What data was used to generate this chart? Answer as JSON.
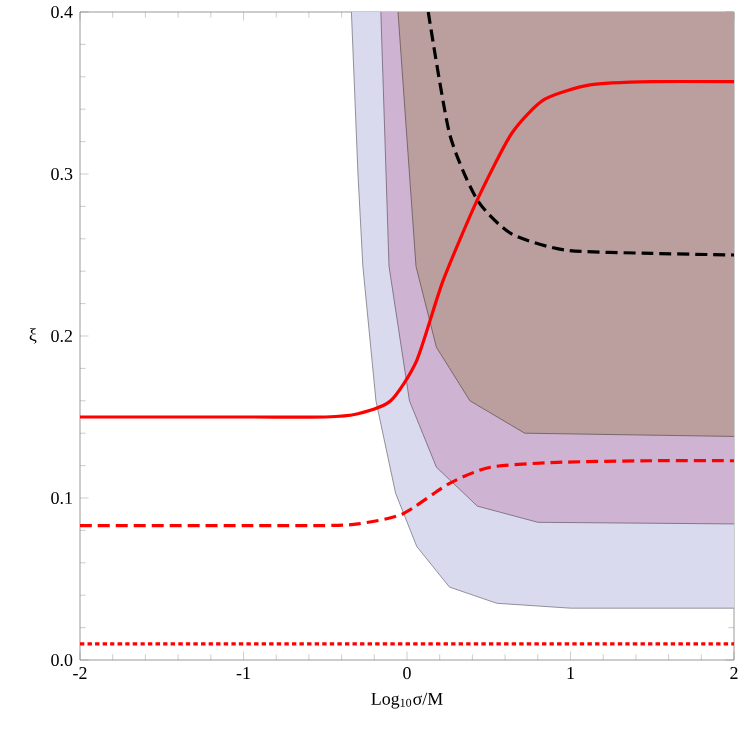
{
  "chart_data": {
    "type": "line",
    "xlabel": "Log$_{10}$σ/M",
    "ylabel": "ξ",
    "xlim": [
      -2,
      2
    ],
    "ylim": [
      0,
      0.4
    ],
    "xticks": [
      -2,
      -1,
      0,
      1,
      2
    ],
    "yticks": [
      {
        "value": 0,
        "label": "0.0"
      },
      {
        "value": 0.1,
        "label": "0.1"
      },
      {
        "value": 0.2,
        "label": "0.2"
      },
      {
        "value": 0.3,
        "label": "0.3"
      },
      {
        "value": 0.4,
        "label": "0.4"
      }
    ],
    "grid": false,
    "legend": false,
    "series": [
      {
        "type": "area",
        "color": "#dadaee",
        "x": [
          -0.34,
          -0.3,
          -0.27,
          -0.19,
          -0.07,
          0.06,
          0.26,
          0.55,
          1,
          2,
          2
        ],
        "values": [
          0.4,
          0.3,
          0.243,
          0.16,
          0.103,
          0.07,
          0.045,
          0.035,
          0.032,
          0.032,
          0.4
        ]
      },
      {
        "type": "area",
        "color": "#cfb3d3",
        "x": [
          -0.16,
          -0.11,
          0.015,
          0.18,
          0.43,
          0.8,
          2,
          2
        ],
        "values": [
          0.4,
          0.243,
          0.16,
          0.119,
          0.095,
          0.085,
          0.084,
          0.4
        ]
      },
      {
        "type": "area",
        "color": "#bb9f9f",
        "x": [
          -0.055,
          0.055,
          0.18,
          0.385,
          0.72,
          2,
          2
        ],
        "values": [
          0.4,
          0.243,
          0.193,
          0.16,
          0.14,
          0.138,
          0.4
        ]
      },
      {
        "color": "#000000",
        "line_style": "dashed",
        "x": [
          0.13,
          0.26,
          0.43,
          0.64,
          0.97,
          1.5,
          2
        ],
        "values": [
          0.4,
          0.325,
          0.284,
          0.263,
          0.253,
          0.251,
          0.25
        ]
      },
      {
        "color": "#ff0000",
        "line_style": "solid",
        "x": [
          -2,
          -1,
          -0.5,
          -0.3,
          -0.1,
          0.06,
          0.22,
          0.43,
          0.64,
          0.84,
          1.12,
          1.5,
          2
        ],
        "values": [
          0.15,
          0.15,
          0.15,
          0.152,
          0.16,
          0.185,
          0.234,
          0.284,
          0.325,
          0.346,
          0.355,
          0.357,
          0.357
        ]
      },
      {
        "color": "#ff0000",
        "line_style": "dashed",
        "x": [
          -2,
          -1,
          -0.5,
          -0.3,
          -0.03,
          0.26,
          0.51,
          0.92,
          1.5,
          2
        ],
        "values": [
          0.083,
          0.083,
          0.083,
          0.084,
          0.09,
          0.109,
          0.119,
          0.122,
          0.123,
          0.123
        ]
      },
      {
        "color": "#ff0000",
        "line_style": "dotted",
        "x": [
          -2,
          2
        ],
        "values": [
          0.01,
          0.01
        ]
      }
    ]
  }
}
